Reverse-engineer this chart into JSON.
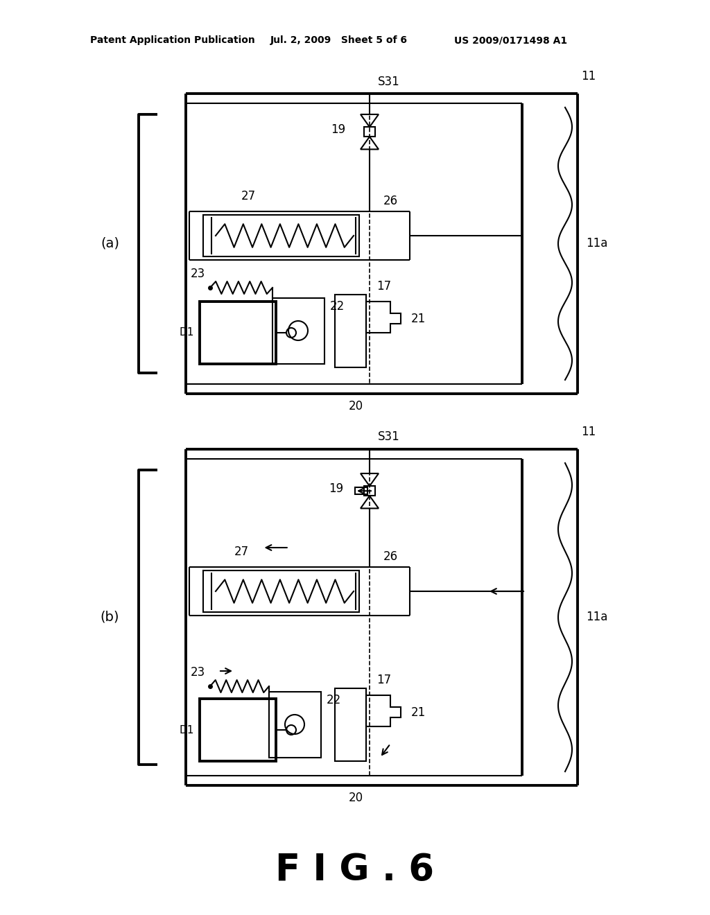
{
  "bg_color": "#ffffff",
  "line_color": "#000000",
  "header_text_left": "Patent Application Publication",
  "header_text_mid": "Jul. 2, 2009   Sheet 5 of 6",
  "header_text_right": "US 2009/0171498 A1",
  "fig_label": "F I G . 6",
  "diagram_a_label": "(a)",
  "diagram_b_label": "(b)",
  "title_fontsize": 10,
  "label_fontsize": 14,
  "fig_label_fontsize": 38,
  "note_fontsize": 12
}
